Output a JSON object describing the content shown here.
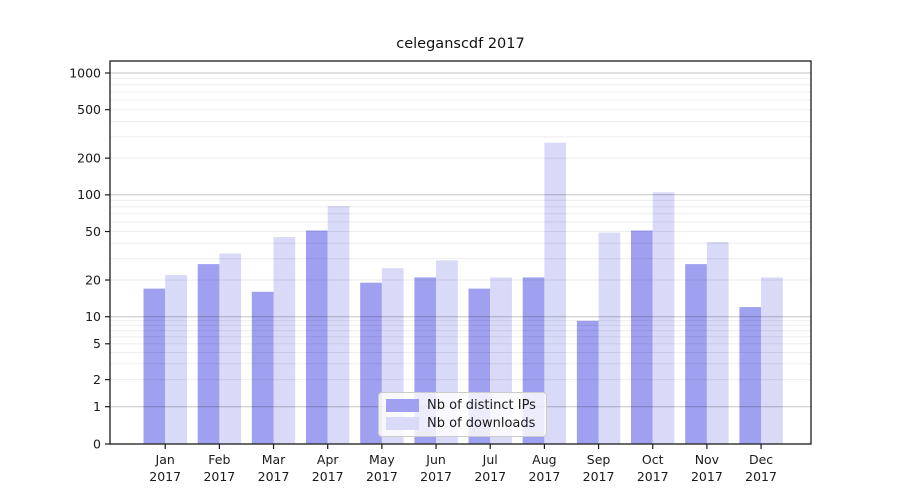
{
  "title": "celeganscdf 2017",
  "chart_data": {
    "type": "bar",
    "title": "celeganscdf 2017",
    "categories": [
      "Jan",
      "Feb",
      "Mar",
      "Apr",
      "May",
      "Jun",
      "Jul",
      "Aug",
      "Sep",
      "Oct",
      "Nov",
      "Dec"
    ],
    "category_year": "2017",
    "series": [
      {
        "name": "Nb of distinct IPs",
        "color": "#a0a0f0",
        "values": [
          17,
          27,
          16,
          51,
          19,
          21,
          17,
          21,
          9,
          51,
          27,
          12
        ]
      },
      {
        "name": "Nb of downloads",
        "color": "#d9d9f8",
        "values": [
          22,
          33,
          45,
          81,
          25,
          29,
          21,
          268,
          49,
          105,
          41,
          21
        ]
      }
    ],
    "yscale": "log-with-zero",
    "yticks": [
      0,
      1,
      2,
      5,
      10,
      20,
      50,
      100,
      200,
      500,
      1000
    ],
    "ylim": [
      0,
      1250
    ],
    "grid": true,
    "legend": {
      "position": "lower-center",
      "entries": [
        "Nb of distinct IPs",
        "Nb of downloads"
      ]
    }
  },
  "colors": {
    "background": "#ffffff",
    "spine": "#1a1a1a",
    "grid_major": "rgba(0,0,0,0.23)",
    "grid_minor": "rgba(0,0,0,0.07)",
    "tick": "#1a1a1a",
    "text": "#1a1a1a",
    "legend_border": "#cccccc"
  }
}
